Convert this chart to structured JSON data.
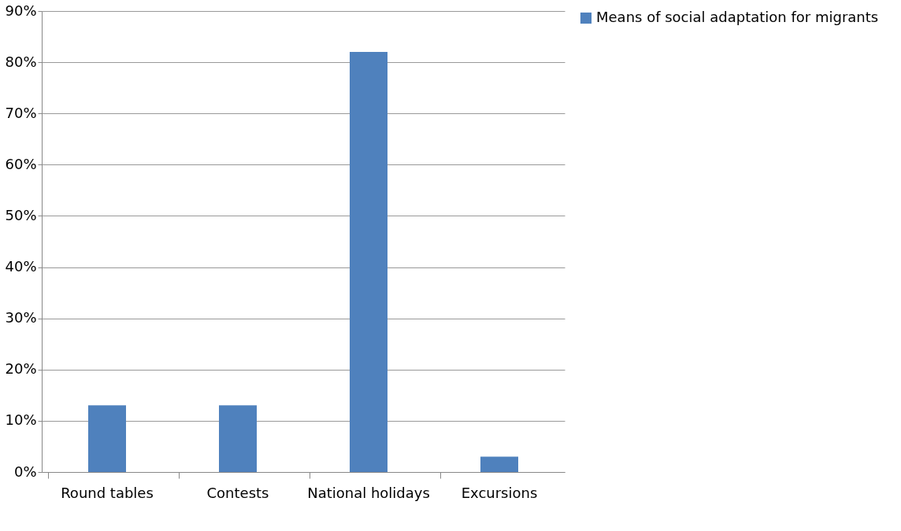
{
  "chart_data": {
    "type": "bar",
    "categories": [
      "Round tables",
      "Contests",
      "National holidays",
      "Excursions"
    ],
    "series": [
      {
        "name": "Means of social adaptation for migrants",
        "color": "#4f81bd",
        "values": [
          13,
          13,
          82,
          3
        ]
      }
    ],
    "ylim": [
      0,
      90
    ],
    "yticks": [
      {
        "value": 0,
        "label": "0%"
      },
      {
        "value": 10,
        "label": "10%"
      },
      {
        "value": 20,
        "label": "20%"
      },
      {
        "value": 30,
        "label": "30%"
      },
      {
        "value": 40,
        "label": "40%"
      },
      {
        "value": 50,
        "label": "50%"
      },
      {
        "value": 60,
        "label": "60%"
      },
      {
        "value": 70,
        "label": "70%"
      },
      {
        "value": 80,
        "label": "80%"
      },
      {
        "value": 90,
        "label": "90%"
      }
    ],
    "grid": "y",
    "legend": "right"
  }
}
